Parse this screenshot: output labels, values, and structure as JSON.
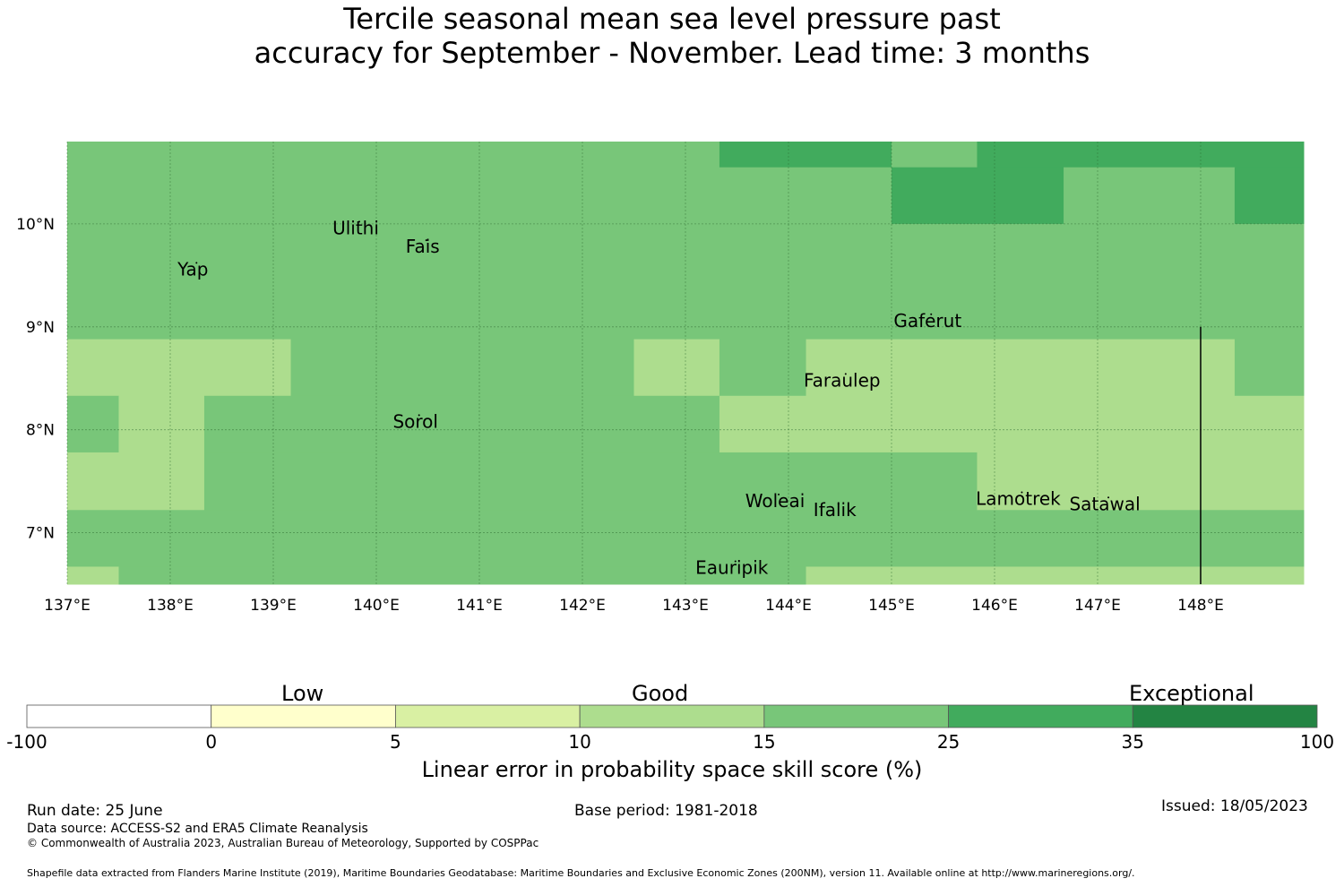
{
  "title": {
    "line1": "Tercile seasonal mean sea level pressure past",
    "line2": "accuracy for September - November. Lead time: 3 months"
  },
  "map": {
    "lon_range": [
      137,
      149
    ],
    "lat_range": [
      6.5,
      10.8
    ],
    "lon_ticks": [
      {
        "value": 137,
        "label": "137°E"
      },
      {
        "value": 138,
        "label": "138°E"
      },
      {
        "value": 139,
        "label": "139°E"
      },
      {
        "value": 140,
        "label": "140°E"
      },
      {
        "value": 141,
        "label": "141°E"
      },
      {
        "value": 142,
        "label": "142°E"
      },
      {
        "value": 143,
        "label": "143°E"
      },
      {
        "value": 144,
        "label": "144°E"
      },
      {
        "value": 145,
        "label": "145°E"
      },
      {
        "value": 146,
        "label": "146°E"
      },
      {
        "value": 147,
        "label": "147°E"
      },
      {
        "value": 148,
        "label": "148°E"
      }
    ],
    "lat_ticks": [
      {
        "value": 10,
        "label": "10°N"
      },
      {
        "value": 9,
        "label": "9°N"
      },
      {
        "value": 8,
        "label": "8°N"
      },
      {
        "value": 7,
        "label": "7°N"
      }
    ],
    "grid_lines": true,
    "category_colors": {
      "10-15": "#addd8e",
      "15-25": "#78c679",
      "25-35": "#41ab5d"
    },
    "cells": [
      {
        "lon": [
          137.0,
          143.33
        ],
        "lat": [
          10.55,
          10.8
        ],
        "cat": "15-25"
      },
      {
        "lon": [
          143.33,
          145.0
        ],
        "lat": [
          10.55,
          10.8
        ],
        "cat": "25-35"
      },
      {
        "lon": [
          145.0,
          145.83
        ],
        "lat": [
          10.55,
          10.8
        ],
        "cat": "15-25"
      },
      {
        "lon": [
          145.83,
          149.0
        ],
        "lat": [
          10.55,
          10.8
        ],
        "cat": "25-35"
      },
      {
        "lon": [
          137.0,
          145.0
        ],
        "lat": [
          10.0,
          10.55
        ],
        "cat": "15-25"
      },
      {
        "lon": [
          145.0,
          146.67
        ],
        "lat": [
          10.0,
          10.55
        ],
        "cat": "25-35"
      },
      {
        "lon": [
          146.67,
          148.33
        ],
        "lat": [
          10.0,
          10.55
        ],
        "cat": "15-25"
      },
      {
        "lon": [
          148.33,
          149.0
        ],
        "lat": [
          10.0,
          10.55
        ],
        "cat": "25-35"
      },
      {
        "lon": [
          137.0,
          149.0
        ],
        "lat": [
          8.88,
          10.0
        ],
        "cat": "15-25"
      },
      {
        "lon": [
          137.0,
          139.17
        ],
        "lat": [
          8.33,
          8.88
        ],
        "cat": "10-15"
      },
      {
        "lon": [
          139.17,
          142.5
        ],
        "lat": [
          8.33,
          8.88
        ],
        "cat": "15-25"
      },
      {
        "lon": [
          142.5,
          143.33
        ],
        "lat": [
          8.33,
          8.88
        ],
        "cat": "10-15"
      },
      {
        "lon": [
          143.33,
          144.17
        ],
        "lat": [
          8.33,
          8.88
        ],
        "cat": "15-25"
      },
      {
        "lon": [
          144.17,
          148.33
        ],
        "lat": [
          8.33,
          8.88
        ],
        "cat": "10-15"
      },
      {
        "lon": [
          148.33,
          149.0
        ],
        "lat": [
          8.33,
          8.88
        ],
        "cat": "15-25"
      },
      {
        "lon": [
          137.0,
          137.5
        ],
        "lat": [
          7.78,
          8.33
        ],
        "cat": "15-25"
      },
      {
        "lon": [
          137.5,
          138.33
        ],
        "lat": [
          7.78,
          8.33
        ],
        "cat": "10-15"
      },
      {
        "lon": [
          138.33,
          143.33
        ],
        "lat": [
          7.78,
          8.33
        ],
        "cat": "15-25"
      },
      {
        "lon": [
          143.33,
          149.0
        ],
        "lat": [
          7.78,
          8.33
        ],
        "cat": "10-15"
      },
      {
        "lon": [
          137.0,
          138.33
        ],
        "lat": [
          7.22,
          7.78
        ],
        "cat": "10-15"
      },
      {
        "lon": [
          138.33,
          145.83
        ],
        "lat": [
          7.22,
          7.78
        ],
        "cat": "15-25"
      },
      {
        "lon": [
          145.83,
          149.0
        ],
        "lat": [
          7.22,
          7.78
        ],
        "cat": "10-15"
      },
      {
        "lon": [
          137.0,
          149.0
        ],
        "lat": [
          6.67,
          7.22
        ],
        "cat": "15-25"
      },
      {
        "lon": [
          137.0,
          137.5
        ],
        "lat": [
          6.5,
          6.67
        ],
        "cat": "10-15"
      },
      {
        "lon": [
          137.5,
          144.17
        ],
        "lat": [
          6.5,
          6.67
        ],
        "cat": "15-25"
      },
      {
        "lon": [
          144.17,
          149.0
        ],
        "lat": [
          6.5,
          6.67
        ],
        "cat": "10-15"
      }
    ],
    "islands": [
      {
        "name": "Ulithi",
        "lon": 139.8,
        "lat": 9.9
      },
      {
        "name": "Fais",
        "lon": 140.45,
        "lat": 9.72
      },
      {
        "name": "Yap",
        "lon": 138.22,
        "lat": 9.5
      },
      {
        "name": "Gaferut",
        "lon": 145.35,
        "lat": 9.0
      },
      {
        "name": "Faraulep",
        "lon": 144.52,
        "lat": 8.42
      },
      {
        "name": "Sorol",
        "lon": 140.38,
        "lat": 8.02
      },
      {
        "name": "Woleai",
        "lon": 143.87,
        "lat": 7.25
      },
      {
        "name": "Ifalik",
        "lon": 144.45,
        "lat": 7.16
      },
      {
        "name": "Lamotrek",
        "lon": 146.23,
        "lat": 7.27
      },
      {
        "name": "Satawal",
        "lon": 147.07,
        "lat": 7.22
      },
      {
        "name": "Eauripik",
        "lon": 143.45,
        "lat": 6.6
      }
    ],
    "boundary_line_lon": 148.0,
    "boundary_line_lat": [
      6.5,
      9.0
    ]
  },
  "colorbar": {
    "segments": [
      {
        "from": -100,
        "to": 0,
        "color": "#ffffff"
      },
      {
        "from": 0,
        "to": 5,
        "color": "#ffffcc"
      },
      {
        "from": 5,
        "to": 10,
        "color": "#d9f0a3"
      },
      {
        "from": 10,
        "to": 15,
        "color": "#addd8e"
      },
      {
        "from": 15,
        "to": 25,
        "color": "#78c679"
      },
      {
        "from": 25,
        "to": 35,
        "color": "#41ab5d"
      },
      {
        "from": 35,
        "to": 100,
        "color": "#238443"
      }
    ],
    "tick_labels": [
      "-100",
      "0",
      "5",
      "10",
      "15",
      "25",
      "35",
      "100"
    ],
    "category_low": "Low",
    "category_good": "Good",
    "category_exceptional": "Exceptional",
    "title": "Linear error in probability space skill score (%)"
  },
  "footer": {
    "run_date": "Run date: 25 June",
    "base_period": "Base period: 1981-2018",
    "issued": "Issued: 18/05/2023",
    "data_source": "Data source: ACCESS-S2 and ERA5 Climate Reanalysis",
    "copyright": "© Commonwealth of Australia 2023, Australian Bureau of Meteorology, Supported by COSPPac",
    "shapefile": "Shapefile data extracted from Flanders Marine Institute (2019), Maritime Boundaries Geodatabase: Maritime Boundaries and Exclusive Economic Zones (200NM), version 11. Available online at http://www.marineregions.org/."
  }
}
